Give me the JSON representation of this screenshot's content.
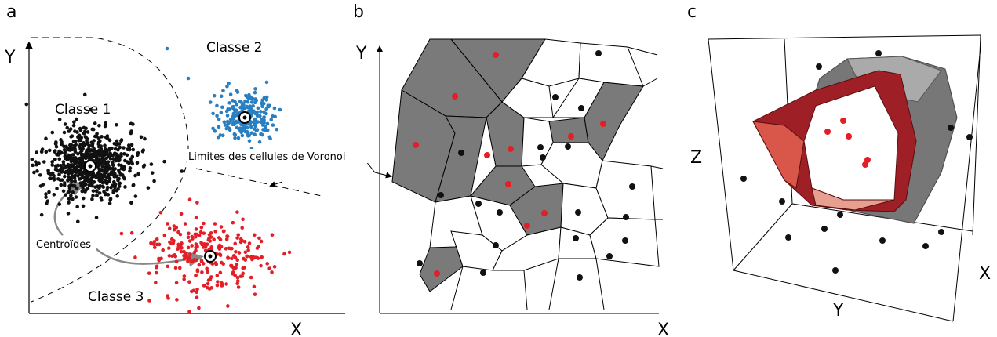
{
  "panels": [
    {
      "label": "a",
      "x_axis": "X",
      "y_axis": "Y",
      "classes": [
        "Classe 1",
        "Classe 2",
        "Classe 3"
      ],
      "centroids_label": "Centroïdes",
      "boundary_label": "Limites des cellules de Voronoi"
    },
    {
      "label": "b",
      "x_axis": "X",
      "y_axis": "Y"
    },
    {
      "label": "c",
      "x_axis": "X",
      "y_axis": "Y",
      "z_axis": "Z"
    }
  ]
}
